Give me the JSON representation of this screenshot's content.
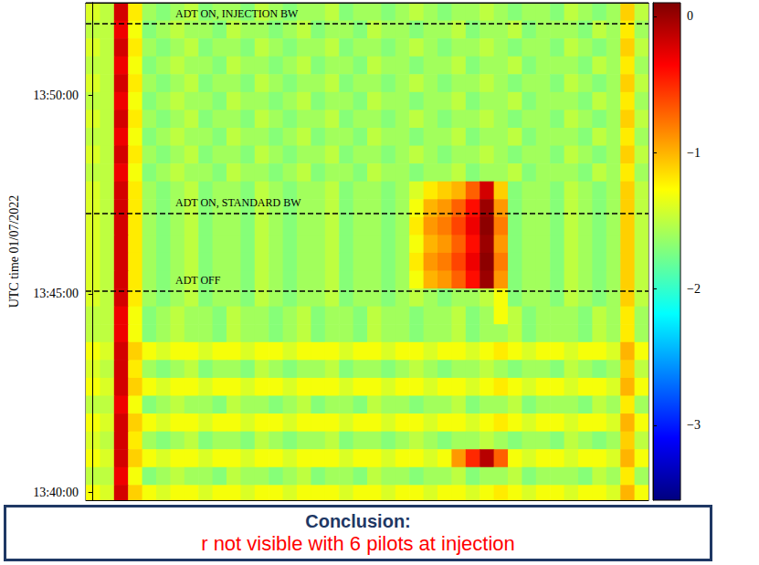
{
  "chart_data": {
    "type": "heatmap",
    "y_label": "UTC time 01/07/2022",
    "tick_labels": "y",
    "grid": false,
    "xlim": [
      -0.5,
      39.5
    ],
    "ylim": [
      49188,
      49940
    ],
    "yticks": [
      {
        "value": 49200,
        "label": "13:40:00"
      },
      {
        "value": 49500,
        "label": "13:45:00"
      },
      {
        "value": 49800,
        "label": "13:50:00"
      }
    ],
    "x": [
      0,
      1,
      2,
      3,
      4,
      5,
      6,
      7,
      8,
      9,
      10,
      11,
      12,
      13,
      14,
      15,
      16,
      17,
      18,
      19,
      20,
      21,
      22,
      23,
      24,
      25,
      26,
      27,
      28,
      29,
      30,
      31,
      32,
      33,
      34,
      35,
      36,
      37,
      38,
      39
    ],
    "y": [
      49926.5,
      49899.5,
      49872.5,
      49845.5,
      49818.5,
      49791.5,
      49764.5,
      49737.5,
      49710.5,
      49683.5,
      49656.5,
      49629.5,
      49602.5,
      49575.5,
      49548.5,
      49521.5,
      49494.5,
      49467.5,
      49440.5,
      49413.5,
      49386.5,
      49359.5,
      49332.5,
      49305.5,
      49278.5,
      49251.5,
      49224.5,
      49197.5
    ],
    "cells": [
      [
        -1.4,
        -1.5,
        -0.2,
        -1.2,
        -1.6,
        -1.7,
        -1.6,
        -1.5,
        -1.7,
        -1.6,
        -1.6,
        -1.7,
        -1.5,
        -1.6,
        -1.7,
        -1.6,
        -1.6,
        -1.5,
        -1.7,
        -1.6,
        -1.6,
        -1.7,
        -1.6,
        -1.5,
        -1.6,
        -1.7,
        -1.6,
        -1.6,
        -1.5,
        -1.6,
        -1.7,
        -1.6,
        -1.6,
        -1.7,
        -1.5,
        -1.6,
        -1.7,
        -1.6,
        -1.1,
        -1.5
      ],
      [
        -1.5,
        -1.5,
        -0.3,
        -1.3,
        -1.7,
        -1.6,
        -1.5,
        -1.6,
        -1.6,
        -1.7,
        -1.5,
        -1.6,
        -1.6,
        -1.7,
        -1.6,
        -1.5,
        -1.7,
        -1.6,
        -1.6,
        -1.7,
        -1.5,
        -1.6,
        -1.6,
        -1.7,
        -1.6,
        -1.6,
        -1.5,
        -1.7,
        -1.6,
        -1.6,
        -1.5,
        -1.7,
        -1.6,
        -1.6,
        -1.6,
        -1.7,
        -1.5,
        -1.6,
        -1.2,
        -1.6
      ],
      [
        -1.4,
        -1.5,
        -0.2,
        -1.2,
        -1.6,
        -1.7,
        -1.6,
        -1.5,
        -1.7,
        -1.6,
        -1.6,
        -1.7,
        -1.5,
        -1.6,
        -1.7,
        -1.6,
        -1.6,
        -1.5,
        -1.7,
        -1.6,
        -1.6,
        -1.7,
        -1.6,
        -1.5,
        -1.6,
        -1.7,
        -1.6,
        -1.6,
        -1.5,
        -1.6,
        -1.7,
        -1.6,
        -1.6,
        -1.7,
        -1.5,
        -1.6,
        -1.7,
        -1.6,
        -1.1,
        -1.5
      ],
      [
        -1.5,
        -1.5,
        -0.3,
        -1.3,
        -1.7,
        -1.6,
        -1.5,
        -1.6,
        -1.6,
        -1.7,
        -1.5,
        -1.6,
        -1.6,
        -1.7,
        -1.6,
        -1.5,
        -1.7,
        -1.6,
        -1.6,
        -1.7,
        -1.5,
        -1.6,
        -1.6,
        -1.7,
        -1.6,
        -1.6,
        -1.5,
        -1.7,
        -1.6,
        -1.6,
        -1.5,
        -1.7,
        -1.6,
        -1.6,
        -1.6,
        -1.7,
        -1.5,
        -1.6,
        -1.2,
        -1.6
      ],
      [
        -1.4,
        -1.5,
        -0.2,
        -1.2,
        -1.6,
        -1.7,
        -1.6,
        -1.5,
        -1.7,
        -1.6,
        -1.6,
        -1.7,
        -1.5,
        -1.6,
        -1.7,
        -1.6,
        -1.6,
        -1.5,
        -1.7,
        -1.6,
        -1.6,
        -1.7,
        -1.6,
        -1.5,
        -1.6,
        -1.7,
        -1.6,
        -1.6,
        -1.5,
        -1.6,
        -1.7,
        -1.6,
        -1.6,
        -1.7,
        -1.5,
        -1.6,
        -1.7,
        -1.6,
        -1.1,
        -1.5
      ],
      [
        -1.5,
        -1.5,
        -0.3,
        -1.3,
        -1.7,
        -1.6,
        -1.5,
        -1.6,
        -1.6,
        -1.7,
        -1.5,
        -1.6,
        -1.6,
        -1.7,
        -1.6,
        -1.5,
        -1.7,
        -1.6,
        -1.6,
        -1.7,
        -1.5,
        -1.6,
        -1.6,
        -1.7,
        -1.6,
        -1.6,
        -1.5,
        -1.7,
        -1.6,
        -1.6,
        -1.5,
        -1.7,
        -1.6,
        -1.6,
        -1.6,
        -1.7,
        -1.5,
        -1.6,
        -1.2,
        -1.6
      ],
      [
        -1.4,
        -1.5,
        -0.2,
        -1.2,
        -1.6,
        -1.7,
        -1.6,
        -1.5,
        -1.7,
        -1.6,
        -1.6,
        -1.7,
        -1.5,
        -1.6,
        -1.7,
        -1.6,
        -1.6,
        -1.5,
        -1.7,
        -1.6,
        -1.6,
        -1.7,
        -1.6,
        -1.5,
        -1.6,
        -1.7,
        -1.6,
        -1.6,
        -1.5,
        -1.6,
        -1.7,
        -1.6,
        -1.6,
        -1.7,
        -1.5,
        -1.6,
        -1.7,
        -1.6,
        -1.1,
        -1.5
      ],
      [
        -1.5,
        -1.5,
        -0.3,
        -1.3,
        -1.7,
        -1.6,
        -1.5,
        -1.6,
        -1.6,
        -1.7,
        -1.5,
        -1.6,
        -1.6,
        -1.7,
        -1.6,
        -1.5,
        -1.7,
        -1.6,
        -1.6,
        -1.7,
        -1.5,
        -1.6,
        -1.6,
        -1.7,
        -1.6,
        -1.6,
        -1.5,
        -1.7,
        -1.6,
        -1.6,
        -1.5,
        -1.7,
        -1.6,
        -1.6,
        -1.6,
        -1.7,
        -1.5,
        -1.6,
        -1.2,
        -1.6
      ],
      [
        -1.4,
        -1.5,
        -0.2,
        -1.2,
        -1.6,
        -1.7,
        -1.6,
        -1.5,
        -1.7,
        -1.6,
        -1.6,
        -1.7,
        -1.5,
        -1.6,
        -1.7,
        -1.6,
        -1.6,
        -1.5,
        -1.7,
        -1.6,
        -1.6,
        -1.7,
        -1.6,
        -1.5,
        -1.6,
        -1.7,
        -1.6,
        -1.6,
        -1.5,
        -1.6,
        -1.7,
        -1.6,
        -1.6,
        -1.7,
        -1.5,
        -1.6,
        -1.7,
        -1.6,
        -1.1,
        -1.5
      ],
      [
        -1.5,
        -1.5,
        -0.3,
        -1.3,
        -1.7,
        -1.6,
        -1.5,
        -1.6,
        -1.6,
        -1.7,
        -1.5,
        -1.6,
        -1.6,
        -1.7,
        -1.6,
        -1.5,
        -1.7,
        -1.6,
        -1.6,
        -1.7,
        -1.5,
        -1.6,
        -1.6,
        -1.7,
        -1.6,
        -1.6,
        -1.5,
        -1.7,
        -1.6,
        -1.6,
        -1.5,
        -1.7,
        -1.6,
        -1.6,
        -1.6,
        -1.7,
        -1.5,
        -1.6,
        -1.2,
        -1.6
      ],
      [
        -1.4,
        -1.5,
        -0.2,
        -1.2,
        -1.6,
        -1.7,
        -1.6,
        -1.5,
        -1.7,
        -1.6,
        -1.6,
        -1.7,
        -1.5,
        -1.6,
        -1.7,
        -1.6,
        -1.6,
        -1.5,
        -1.7,
        -1.6,
        -1.6,
        -1.7,
        -1.6,
        -1.4,
        -1.2,
        -1.1,
        -1.0,
        -0.7,
        -0.2,
        -1.1,
        -1.7,
        -1.6,
        -1.6,
        -1.7,
        -1.5,
        -1.6,
        -1.7,
        -1.6,
        -1.1,
        -1.5
      ],
      [
        -1.4,
        -1.5,
        -0.2,
        -1.2,
        -1.6,
        -1.7,
        -1.6,
        -1.5,
        -1.7,
        -1.6,
        -1.6,
        -1.7,
        -1.5,
        -1.6,
        -1.7,
        -1.6,
        -1.6,
        -1.5,
        -1.7,
        -1.6,
        -1.6,
        -1.7,
        -1.6,
        -1.3,
        -1.0,
        -0.9,
        -0.7,
        -0.4,
        0.0,
        -0.9,
        -1.7,
        -1.6,
        -1.6,
        -1.7,
        -1.5,
        -1.6,
        -1.7,
        -1.6,
        -1.1,
        -1.5
      ],
      [
        -1.4,
        -1.5,
        -0.2,
        -1.2,
        -1.6,
        -1.7,
        -1.6,
        -1.5,
        -1.7,
        -1.6,
        -1.6,
        -1.7,
        -1.5,
        -1.6,
        -1.7,
        -1.6,
        -1.6,
        -1.5,
        -1.7,
        -1.6,
        -1.6,
        -1.7,
        -1.6,
        -1.2,
        -0.9,
        -0.8,
        -0.6,
        -0.3,
        0.05,
        -0.8,
        -1.7,
        -1.6,
        -1.6,
        -1.7,
        -1.5,
        -1.6,
        -1.7,
        -1.6,
        -1.1,
        -1.5
      ],
      [
        -1.4,
        -1.5,
        -0.2,
        -1.2,
        -1.6,
        -1.7,
        -1.6,
        -1.5,
        -1.7,
        -1.6,
        -1.6,
        -1.7,
        -1.5,
        -1.6,
        -1.7,
        -1.6,
        -1.6,
        -1.5,
        -1.7,
        -1.6,
        -1.6,
        -1.7,
        -1.6,
        -1.3,
        -1.0,
        -0.9,
        -0.7,
        -0.4,
        0.0,
        -0.9,
        -1.7,
        -1.6,
        -1.6,
        -1.7,
        -1.5,
        -1.6,
        -1.7,
        -1.6,
        -1.1,
        -1.5
      ],
      [
        -1.4,
        -1.5,
        -0.2,
        -1.2,
        -1.6,
        -1.7,
        -1.6,
        -1.5,
        -1.7,
        -1.6,
        -1.6,
        -1.7,
        -1.5,
        -1.6,
        -1.7,
        -1.6,
        -1.6,
        -1.5,
        -1.7,
        -1.6,
        -1.6,
        -1.7,
        -1.6,
        -1.2,
        -0.9,
        -0.8,
        -0.6,
        -0.3,
        0.05,
        -0.8,
        -1.7,
        -1.6,
        -1.6,
        -1.7,
        -1.5,
        -1.6,
        -1.7,
        -1.6,
        -1.1,
        -1.5
      ],
      [
        -1.4,
        -1.5,
        -0.2,
        -1.2,
        -1.6,
        -1.7,
        -1.6,
        -1.5,
        -1.7,
        -1.6,
        -1.6,
        -1.7,
        -1.5,
        -1.6,
        -1.7,
        -1.6,
        -1.6,
        -1.5,
        -1.7,
        -1.6,
        -1.6,
        -1.7,
        -1.6,
        -1.3,
        -1.0,
        -0.9,
        -0.7,
        -0.4,
        0.0,
        -0.9,
        -1.7,
        -1.6,
        -1.6,
        -1.7,
        -1.5,
        -1.6,
        -1.7,
        -1.6,
        -1.1,
        -1.5
      ],
      [
        -1.4,
        -1.5,
        -0.2,
        -1.2,
        -1.6,
        -1.7,
        -1.6,
        -1.5,
        -1.7,
        -1.6,
        -1.6,
        -1.7,
        -1.5,
        -1.6,
        -1.7,
        -1.6,
        -1.6,
        -1.5,
        -1.7,
        -1.6,
        -1.6,
        -1.7,
        -1.6,
        -1.5,
        -1.6,
        -1.7,
        -1.6,
        -1.6,
        -1.5,
        -1.3,
        -1.7,
        -1.6,
        -1.6,
        -1.7,
        -1.5,
        -1.6,
        -1.7,
        -1.6,
        -1.1,
        -1.5
      ],
      [
        -1.5,
        -1.5,
        -0.3,
        -1.3,
        -1.7,
        -1.6,
        -1.5,
        -1.6,
        -1.6,
        -1.7,
        -1.5,
        -1.6,
        -1.6,
        -1.7,
        -1.6,
        -1.5,
        -1.7,
        -1.6,
        -1.6,
        -1.7,
        -1.5,
        -1.6,
        -1.6,
        -1.7,
        -1.6,
        -1.6,
        -1.5,
        -1.7,
        -1.6,
        -1.3,
        -1.5,
        -1.7,
        -1.6,
        -1.6,
        -1.6,
        -1.7,
        -1.5,
        -1.6,
        -1.2,
        -1.6
      ],
      [
        -1.5,
        -1.5,
        -0.3,
        -1.3,
        -1.7,
        -1.6,
        -1.5,
        -1.6,
        -1.6,
        -1.7,
        -1.5,
        -1.6,
        -1.6,
        -1.7,
        -1.6,
        -1.5,
        -1.7,
        -1.6,
        -1.6,
        -1.7,
        -1.5,
        -1.6,
        -1.6,
        -1.7,
        -1.6,
        -1.6,
        -1.5,
        -1.7,
        -1.6,
        -1.6,
        -1.5,
        -1.7,
        -1.6,
        -1.6,
        -1.6,
        -1.7,
        -1.5,
        -1.6,
        -1.2,
        -1.6
      ],
      [
        -1.3,
        -1.4,
        -0.2,
        -1.1,
        -1.3,
        -1.4,
        -1.3,
        -1.3,
        -1.4,
        -1.3,
        -1.3,
        -1.4,
        -1.3,
        -1.3,
        -1.4,
        -1.3,
        -1.3,
        -1.3,
        -1.4,
        -1.3,
        -1.3,
        -1.4,
        -1.3,
        -1.3,
        -1.4,
        -1.3,
        -1.3,
        -1.4,
        -1.3,
        -1.2,
        -1.3,
        -1.4,
        -1.3,
        -1.3,
        -1.4,
        -1.3,
        -1.3,
        -1.4,
        -1.0,
        -1.3
      ],
      [
        -1.4,
        -1.5,
        -0.2,
        -1.2,
        -1.6,
        -1.7,
        -1.6,
        -1.5,
        -1.7,
        -1.6,
        -1.6,
        -1.7,
        -1.5,
        -1.6,
        -1.7,
        -1.6,
        -1.6,
        -1.5,
        -1.7,
        -1.6,
        -1.6,
        -1.7,
        -1.6,
        -1.5,
        -1.6,
        -1.7,
        -1.6,
        -1.6,
        -1.5,
        -1.6,
        -1.7,
        -1.6,
        -1.6,
        -1.7,
        -1.5,
        -1.6,
        -1.7,
        -1.6,
        -1.1,
        -1.5
      ],
      [
        -1.3,
        -1.4,
        -0.2,
        -1.1,
        -1.3,
        -1.4,
        -1.3,
        -1.3,
        -1.4,
        -1.3,
        -1.3,
        -1.4,
        -1.3,
        -1.3,
        -1.4,
        -1.3,
        -1.3,
        -1.3,
        -1.4,
        -1.3,
        -1.3,
        -1.4,
        -1.3,
        -1.3,
        -1.4,
        -1.3,
        -1.3,
        -1.4,
        -1.3,
        -1.2,
        -1.3,
        -1.4,
        -1.3,
        -1.3,
        -1.4,
        -1.3,
        -1.3,
        -1.4,
        -1.0,
        -1.3
      ],
      [
        -1.5,
        -1.5,
        -0.3,
        -1.3,
        -1.7,
        -1.6,
        -1.5,
        -1.6,
        -1.6,
        -1.7,
        -1.5,
        -1.6,
        -1.6,
        -1.7,
        -1.6,
        -1.5,
        -1.7,
        -1.6,
        -1.6,
        -1.7,
        -1.5,
        -1.6,
        -1.6,
        -1.7,
        -1.6,
        -1.6,
        -1.5,
        -1.7,
        -1.6,
        -1.6,
        -1.5,
        -1.7,
        -1.6,
        -1.6,
        -1.6,
        -1.7,
        -1.5,
        -1.6,
        -1.2,
        -1.6
      ],
      [
        -1.3,
        -1.4,
        -0.2,
        -1.1,
        -1.3,
        -1.4,
        -1.3,
        -1.3,
        -1.4,
        -1.3,
        -1.3,
        -1.4,
        -1.3,
        -1.3,
        -1.4,
        -1.3,
        -1.3,
        -1.3,
        -1.4,
        -1.3,
        -1.3,
        -1.4,
        -1.3,
        -1.3,
        -1.4,
        -1.3,
        -1.3,
        -1.4,
        -1.3,
        -1.2,
        -1.3,
        -1.4,
        -1.3,
        -1.3,
        -1.4,
        -1.3,
        -1.3,
        -1.4,
        -1.0,
        -1.3
      ],
      [
        -1.4,
        -1.5,
        -0.2,
        -1.2,
        -1.6,
        -1.7,
        -1.6,
        -1.5,
        -1.7,
        -1.6,
        -1.6,
        -1.7,
        -1.5,
        -1.6,
        -1.7,
        -1.6,
        -1.6,
        -1.5,
        -1.7,
        -1.6,
        -1.6,
        -1.7,
        -1.6,
        -1.5,
        -1.6,
        -1.7,
        -1.6,
        -1.6,
        -1.5,
        -1.6,
        -1.7,
        -1.6,
        -1.6,
        -1.7,
        -1.5,
        -1.6,
        -1.7,
        -1.6,
        -1.1,
        -1.5
      ],
      [
        -1.3,
        -1.4,
        -0.2,
        -1.1,
        -1.3,
        -1.4,
        -1.3,
        -1.3,
        -1.4,
        -1.3,
        -1.3,
        -1.4,
        -1.3,
        -1.3,
        -1.4,
        -1.3,
        -1.3,
        -1.3,
        -1.4,
        -1.3,
        -1.3,
        -1.4,
        -1.3,
        -1.3,
        -1.4,
        -1.3,
        -0.9,
        -0.5,
        -0.1,
        -0.7,
        -1.3,
        -1.4,
        -1.3,
        -1.3,
        -1.4,
        -1.3,
        -1.3,
        -1.4,
        -1.0,
        -1.3
      ],
      [
        -1.5,
        -1.5,
        -0.3,
        -1.3,
        -1.7,
        -1.6,
        -1.5,
        -1.6,
        -1.6,
        -1.7,
        -1.5,
        -1.6,
        -1.6,
        -1.7,
        -1.6,
        -1.5,
        -1.7,
        -1.6,
        -1.6,
        -1.7,
        -1.5,
        -1.6,
        -1.6,
        -1.7,
        -1.6,
        -1.6,
        -1.5,
        -1.7,
        -1.6,
        -1.6,
        -1.5,
        -1.7,
        -1.6,
        -1.6,
        -1.6,
        -1.7,
        -1.5,
        -1.6,
        -1.2,
        -1.6
      ],
      [
        -1.3,
        -1.4,
        -0.2,
        -1.1,
        -1.3,
        -1.4,
        -1.3,
        -1.3,
        -1.4,
        -1.3,
        -1.3,
        -1.4,
        -1.3,
        -1.3,
        -1.4,
        -1.3,
        -1.3,
        -1.3,
        -1.4,
        -1.3,
        -1.3,
        -1.4,
        -1.3,
        -1.3,
        -1.4,
        -1.3,
        -1.3,
        -1.4,
        -1.3,
        -1.2,
        -1.3,
        -1.4,
        -1.3,
        -1.3,
        -1.4,
        -1.3,
        -1.3,
        -1.4,
        -1.0,
        -1.3
      ]
    ],
    "colorbar": {
      "range": [
        -3.55,
        0.1
      ],
      "ticks": [
        {
          "value": -3,
          "label": "−3"
        },
        {
          "value": -2,
          "label": "−2"
        },
        {
          "value": -1,
          "label": "−1"
        },
        0
      ]
    },
    "annotations": [
      {
        "label": "ADT ON, INJECTION BW",
        "y": 49908
      },
      {
        "label": "ADT ON, STANDARD BW",
        "y": 49622
      },
      {
        "label": "ADT OFF",
        "y": 49505
      }
    ]
  },
  "note_box": {
    "heading": "Conclusion:",
    "text": "r not visible with 6 pilots at injection"
  }
}
